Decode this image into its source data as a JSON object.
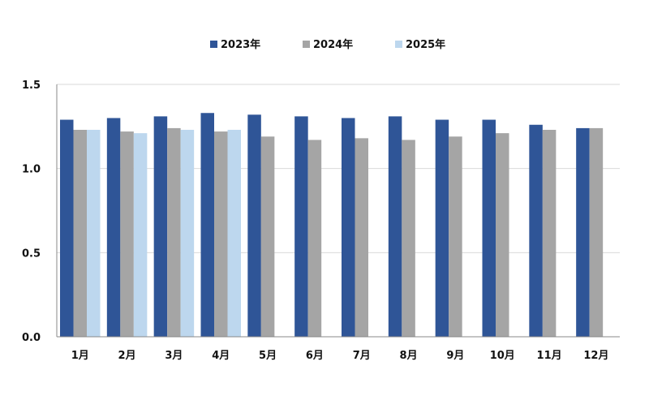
{
  "chart_data": {
    "type": "bar",
    "title": "",
    "xlabel": "",
    "ylabel": "",
    "categories": [
      "1月",
      "2月",
      "3月",
      "4月",
      "5月",
      "6月",
      "7月",
      "8月",
      "9月",
      "10月",
      "11月",
      "12月"
    ],
    "series": [
      {
        "name": "2023年",
        "color": "#2F5597",
        "values": [
          1.29,
          1.3,
          1.31,
          1.33,
          1.32,
          1.31,
          1.3,
          1.31,
          1.29,
          1.29,
          1.26,
          1.24
        ]
      },
      {
        "name": "2024年",
        "color": "#A5A5A5",
        "values": [
          1.23,
          1.22,
          1.24,
          1.22,
          1.19,
          1.17,
          1.18,
          1.17,
          1.19,
          1.21,
          1.23,
          1.24
        ]
      },
      {
        "name": "2025年",
        "color": "#BDD7EE",
        "values": [
          1.23,
          1.21,
          1.23,
          1.23,
          null,
          null,
          null,
          null,
          null,
          null,
          null,
          null
        ]
      }
    ],
    "ylim": [
      0,
      1.5
    ],
    "yticks": [
      "0.0",
      "0.5",
      "1.0",
      "1.5"
    ],
    "ytick_values": [
      0,
      0.5,
      1.0,
      1.5
    ],
    "grid": true,
    "legend_position": "top-center"
  }
}
